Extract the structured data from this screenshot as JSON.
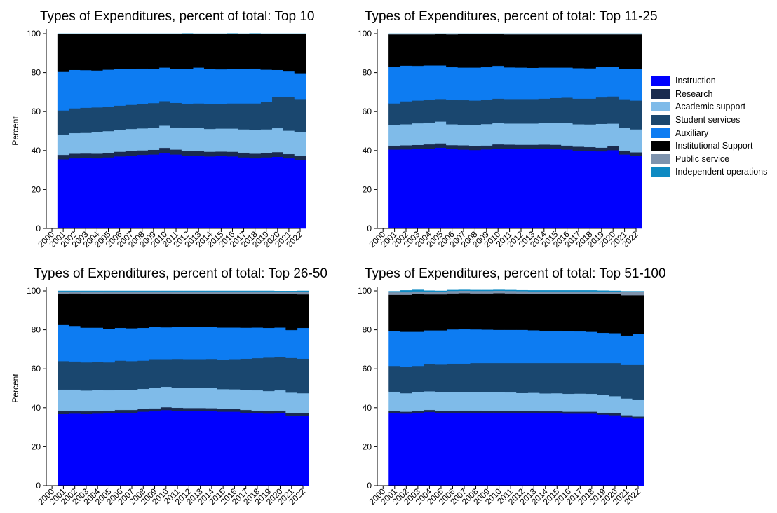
{
  "colors": {
    "Instruction": "#0000ff",
    "Research": "#1a2b4f",
    "Academic support": "#7fbbe9",
    "Student services": "#1a476f",
    "Auxiliary": "#0d7cf2",
    "Institutional Support": "#000000",
    "Public service": "#7e93ad",
    "Independent operations": "#0e8ac2"
  },
  "legend": [
    "Instruction",
    "Research",
    "Academic support",
    "Student services",
    "Auxiliary",
    "Institutional Support",
    "Public service",
    "Independent operations"
  ],
  "chart_data": [
    {
      "type": "area",
      "title": "Types of Expenditures, percent of total: Top 10",
      "ylabel": "Percent",
      "xlabel": "",
      "ylim": [
        0,
        100
      ],
      "yticks": [
        0,
        20,
        40,
        60,
        80,
        100
      ],
      "x_tick_labels": [
        "2000",
        "2001",
        "2002",
        "2003",
        "2004",
        "2005",
        "2006",
        "2007",
        "2008",
        "2009",
        "2010",
        "2011",
        "2012",
        "2013",
        "2014",
        "2015",
        "2016",
        "2017",
        "2018",
        "2019",
        "2020",
        "2021",
        "2022"
      ],
      "x": [
        2001,
        2002,
        2003,
        2004,
        2005,
        2006,
        2007,
        2008,
        2009,
        2010,
        2011,
        2012,
        2013,
        2014,
        2015,
        2016,
        2017,
        2018,
        2019,
        2020,
        2021,
        2022
      ],
      "series": [
        {
          "name": "Instruction",
          "values": [
            35.5,
            36.0,
            36.2,
            36.0,
            36.5,
            37.0,
            37.5,
            37.8,
            38.0,
            38.8,
            38.0,
            37.5,
            37.5,
            37.0,
            37.2,
            37.0,
            36.5,
            36.0,
            36.5,
            36.8,
            36.0,
            35.0
          ]
        },
        {
          "name": "Research",
          "values": [
            2.3,
            2.4,
            2.3,
            2.4,
            2.3,
            2.4,
            2.4,
            2.3,
            2.4,
            2.6,
            2.5,
            2.4,
            2.4,
            2.4,
            2.3,
            2.4,
            2.4,
            2.4,
            2.3,
            2.4,
            2.2,
            2.4
          ]
        },
        {
          "name": "Academic support",
          "values": [
            10.5,
            10.6,
            10.6,
            11.2,
            11.2,
            11.1,
            11.2,
            11.3,
            11.4,
            11.4,
            11.4,
            11.7,
            11.7,
            11.7,
            11.8,
            11.9,
            12.0,
            12.1,
            12.1,
            12.3,
            12.0,
            12.1
          ]
        },
        {
          "name": "Student services",
          "values": [
            12.3,
            12.7,
            12.9,
            12.6,
            12.6,
            12.6,
            12.4,
            12.6,
            12.6,
            12.6,
            12.6,
            12.5,
            12.6,
            12.9,
            12.7,
            12.9,
            13.3,
            13.7,
            14.1,
            16.0,
            17.4,
            17.0
          ]
        },
        {
          "name": "Auxiliary",
          "values": [
            19.8,
            19.7,
            19.3,
            18.9,
            18.9,
            18.9,
            18.5,
            18.1,
            17.5,
            17.2,
            17.4,
            17.7,
            18.4,
            17.8,
            17.7,
            17.6,
            17.8,
            17.9,
            16.5,
            13.9,
            13.0,
            13.2
          ]
        },
        {
          "name": "Institutional Support",
          "values": [
            19.4,
            18.4,
            18.5,
            18.7,
            18.3,
            17.8,
            17.8,
            17.7,
            17.9,
            17.2,
            17.9,
            18.1,
            17.2,
            18.0,
            18.1,
            18.1,
            17.8,
            17.8,
            18.3,
            18.4,
            19.2,
            20.1
          ]
        },
        {
          "name": "Public service",
          "values": [
            0.1,
            0.1,
            0.1,
            0.1,
            0.1,
            0.1,
            0.1,
            0.1,
            0.1,
            0.1,
            0.1,
            0.1,
            0.1,
            0.1,
            0.1,
            0.1,
            0.1,
            0.1,
            0.1,
            0.1,
            0.1,
            0.1
          ]
        },
        {
          "name": "Independent operations",
          "values": [
            0.1,
            0.1,
            0.1,
            0.1,
            0.1,
            0.1,
            0.1,
            0.1,
            0.1,
            0.1,
            0.1,
            0.1,
            0.1,
            0.1,
            0.1,
            0.1,
            0.1,
            0.1,
            0.1,
            0.1,
            0.1,
            0.1
          ]
        }
      ]
    },
    {
      "type": "area",
      "title": "Types of Expenditures, percent of total: Top 11-25",
      "ylabel": "",
      "xlabel": "",
      "ylim": [
        0,
        100
      ],
      "yticks": [
        0,
        20,
        40,
        60,
        80,
        100
      ],
      "x_tick_labels": [
        "2000",
        "2001",
        "2002",
        "2003",
        "2004",
        "2005",
        "2006",
        "2007",
        "2008",
        "2009",
        "2010",
        "2011",
        "2012",
        "2013",
        "2014",
        "2015",
        "2016",
        "2017",
        "2018",
        "2019",
        "2020",
        "2021",
        "2022"
      ],
      "x": [
        2001,
        2002,
        2003,
        2004,
        2005,
        2006,
        2007,
        2008,
        2009,
        2010,
        2011,
        2012,
        2013,
        2014,
        2015,
        2016,
        2017,
        2018,
        2019,
        2020,
        2021,
        2022
      ],
      "series": [
        {
          "name": "Instruction",
          "values": [
            40.5,
            40.6,
            40.8,
            41.0,
            41.5,
            40.8,
            40.5,
            40.3,
            40.6,
            41.0,
            41.0,
            41.0,
            41.0,
            41.0,
            41.0,
            40.5,
            40.0,
            39.8,
            39.6,
            40.2,
            38.0,
            37.2
          ]
        },
        {
          "name": "Research",
          "values": [
            2.0,
            2.1,
            2.1,
            2.2,
            2.2,
            2.0,
            2.2,
            2.0,
            2.0,
            2.2,
            2.1,
            2.0,
            2.0,
            2.1,
            2.0,
            2.1,
            2.0,
            2.0,
            1.9,
            2.0,
            2.0,
            1.9
          ]
        },
        {
          "name": "Academic support",
          "values": [
            10.6,
            10.8,
            11.1,
            11.2,
            11.2,
            10.7,
            10.6,
            10.9,
            11.0,
            10.9,
            10.8,
            10.9,
            10.9,
            11.1,
            11.2,
            11.5,
            11.5,
            11.6,
            12.2,
            11.6,
            11.8,
            11.8
          ]
        },
        {
          "name": "Student services",
          "values": [
            11.1,
            11.8,
            11.7,
            11.8,
            11.6,
            12.5,
            12.6,
            12.5,
            12.5,
            12.6,
            12.6,
            12.6,
            12.6,
            12.5,
            12.8,
            13.1,
            13.2,
            13.3,
            13.6,
            14.0,
            14.6,
            14.8
          ]
        },
        {
          "name": "Auxiliary",
          "values": [
            18.9,
            18.3,
            17.8,
            17.5,
            17.2,
            16.8,
            16.7,
            16.9,
            16.7,
            16.8,
            16.2,
            16.1,
            16.0,
            15.9,
            15.6,
            15.4,
            15.6,
            15.5,
            15.6,
            15.2,
            15.4,
            16.2
          ]
        },
        {
          "name": "Institutional Support",
          "values": [
            16.5,
            16.0,
            16.1,
            15.9,
            16.0,
            16.8,
            17.1,
            17.1,
            16.9,
            16.2,
            16.9,
            17.0,
            17.1,
            17.0,
            17.0,
            17.0,
            17.3,
            17.4,
            16.7,
            16.6,
            17.8,
            17.7
          ]
        },
        {
          "name": "Public service",
          "values": [
            0.3,
            0.3,
            0.3,
            0.3,
            0.2,
            0.3,
            0.2,
            0.2,
            0.2,
            0.2,
            0.3,
            0.3,
            0.3,
            0.3,
            0.3,
            0.3,
            0.3,
            0.3,
            0.3,
            0.3,
            0.3,
            0.3
          ]
        },
        {
          "name": "Independent operations",
          "values": [
            0.1,
            0.1,
            0.1,
            0.1,
            0.1,
            0.1,
            0.1,
            0.1,
            0.1,
            0.1,
            0.1,
            0.1,
            0.1,
            0.1,
            0.1,
            0.1,
            0.1,
            0.1,
            0.1,
            0.1,
            0.1,
            0.1
          ]
        }
      ]
    },
    {
      "type": "area",
      "title": "Types of Expenditures, percent of total: Top 26-50",
      "ylabel": "Percent",
      "xlabel": "",
      "ylim": [
        0,
        100
      ],
      "yticks": [
        0,
        20,
        40,
        60,
        80,
        100
      ],
      "x_tick_labels": [
        "2000",
        "2001",
        "2002",
        "2003",
        "2004",
        "2005",
        "2006",
        "2007",
        "2008",
        "2009",
        "2010",
        "2011",
        "2012",
        "2013",
        "2014",
        "2015",
        "2016",
        "2017",
        "2018",
        "2019",
        "2020",
        "2021",
        "2022"
      ],
      "x": [
        2001,
        2002,
        2003,
        2004,
        2005,
        2006,
        2007,
        2008,
        2009,
        2010,
        2011,
        2012,
        2013,
        2014,
        2015,
        2016,
        2017,
        2018,
        2019,
        2020,
        2021,
        2022
      ],
      "series": [
        {
          "name": "Instruction",
          "values": [
            36.8,
            37.0,
            36.8,
            37.0,
            37.2,
            37.5,
            37.5,
            38.0,
            38.2,
            38.8,
            38.5,
            38.5,
            38.4,
            38.3,
            38.0,
            38.0,
            37.5,
            37.2,
            37.0,
            37.2,
            36.0,
            36.0
          ]
        },
        {
          "name": "Research",
          "values": [
            1.5,
            1.5,
            1.4,
            1.5,
            1.4,
            1.4,
            1.4,
            1.5,
            1.5,
            1.5,
            1.5,
            1.4,
            1.5,
            1.5,
            1.4,
            1.4,
            1.4,
            1.4,
            1.4,
            1.4,
            1.4,
            1.3
          ]
        },
        {
          "name": "Academic support",
          "values": [
            11.0,
            10.8,
            10.7,
            10.7,
            10.4,
            10.3,
            10.3,
            10.2,
            10.5,
            10.5,
            10.3,
            10.4,
            10.3,
            10.3,
            10.2,
            10.1,
            10.3,
            10.4,
            10.2,
            10.4,
            10.4,
            10.2
          ]
        },
        {
          "name": "Student services",
          "values": [
            14.7,
            14.5,
            14.4,
            14.2,
            14.3,
            15.0,
            14.8,
            14.5,
            14.8,
            14.2,
            14.8,
            14.7,
            14.8,
            15.0,
            15.2,
            15.5,
            16.0,
            16.5,
            17.2,
            17.2,
            17.8,
            17.7
          ]
        },
        {
          "name": "Auxiliary",
          "values": [
            18.5,
            18.2,
            17.8,
            17.7,
            17.2,
            16.8,
            16.8,
            16.8,
            16.5,
            16.3,
            16.5,
            16.4,
            16.5,
            16.4,
            16.4,
            16.2,
            15.9,
            15.7,
            15.2,
            15.0,
            14.3,
            15.8
          ]
        },
        {
          "name": "Institutional Support",
          "values": [
            16.1,
            16.7,
            17.3,
            17.3,
            18.1,
            17.6,
            17.8,
            17.6,
            17.1,
            17.3,
            16.9,
            17.1,
            17.0,
            17.0,
            17.3,
            17.3,
            17.4,
            17.3,
            17.5,
            17.2,
            18.4,
            17.2
          ]
        },
        {
          "name": "Public service",
          "values": [
            1.2,
            1.1,
            1.4,
            1.4,
            1.2,
            1.2,
            1.2,
            1.2,
            1.2,
            1.2,
            1.3,
            1.3,
            1.3,
            1.3,
            1.3,
            1.3,
            1.3,
            1.3,
            1.3,
            1.3,
            1.2,
            1.3
          ]
        },
        {
          "name": "Independent operations",
          "values": [
            0.2,
            0.2,
            0.2,
            0.2,
            0.2,
            0.2,
            0.2,
            0.2,
            0.2,
            0.2,
            0.2,
            0.2,
            0.2,
            0.2,
            0.2,
            0.2,
            0.2,
            0.2,
            0.2,
            0.2,
            0.4,
            0.5
          ]
        }
      ]
    },
    {
      "type": "area",
      "title": "Types of Expenditures, percent of total: Top 51-100",
      "ylabel": "",
      "xlabel": "",
      "ylim": [
        0,
        100
      ],
      "yticks": [
        0,
        20,
        40,
        60,
        80,
        100
      ],
      "x_tick_labels": [
        "2000",
        "2001",
        "2002",
        "2003",
        "2004",
        "2005",
        "2006",
        "2007",
        "2008",
        "2009",
        "2010",
        "2011",
        "2012",
        "2013",
        "2014",
        "2015",
        "2016",
        "2017",
        "2018",
        "2019",
        "2020",
        "2021",
        "2022"
      ],
      "x": [
        2001,
        2002,
        2003,
        2004,
        2005,
        2006,
        2007,
        2008,
        2009,
        2010,
        2011,
        2012,
        2013,
        2014,
        2015,
        2016,
        2017,
        2018,
        2019,
        2020,
        2021,
        2022
      ],
      "series": [
        {
          "name": "Instruction",
          "values": [
            37.5,
            37.0,
            37.5,
            37.8,
            37.5,
            37.5,
            37.5,
            37.5,
            37.5,
            37.5,
            37.5,
            37.3,
            37.5,
            37.2,
            37.2,
            37.0,
            37.0,
            37.0,
            36.5,
            36.2,
            35.2,
            34.5
          ]
        },
        {
          "name": "Research",
          "values": [
            1.0,
            1.0,
            1.0,
            1.1,
            1.0,
            1.0,
            1.1,
            1.1,
            1.0,
            1.0,
            1.0,
            1.0,
            1.0,
            1.0,
            1.0,
            1.0,
            1.0,
            1.0,
            1.0,
            1.0,
            1.0,
            1.0
          ]
        },
        {
          "name": "Academic support",
          "values": [
            9.8,
            9.5,
            9.5,
            9.6,
            9.7,
            9.7,
            9.6,
            9.6,
            9.5,
            9.5,
            9.4,
            9.3,
            9.2,
            9.2,
            9.3,
            9.2,
            9.3,
            9.2,
            9.2,
            8.8,
            8.6,
            8.5
          ]
        },
        {
          "name": "Student services",
          "values": [
            13.2,
            13.5,
            13.5,
            14.0,
            14.0,
            14.5,
            14.5,
            14.8,
            15.0,
            15.0,
            15.1,
            15.4,
            15.3,
            15.6,
            15.5,
            15.8,
            15.7,
            15.8,
            16.3,
            17.0,
            17.2,
            18.0
          ]
        },
        {
          "name": "Auxiliary",
          "values": [
            18.0,
            18.0,
            17.5,
            17.2,
            17.5,
            17.5,
            17.6,
            17.2,
            17.1,
            17.0,
            17.0,
            17.0,
            16.8,
            16.6,
            16.6,
            16.3,
            16.2,
            16.0,
            15.5,
            15.3,
            15.0,
            15.8
          ]
        },
        {
          "name": "Institutional Support",
          "values": [
            18.5,
            19.0,
            19.5,
            18.5,
            18.5,
            18.5,
            18.5,
            18.5,
            18.6,
            18.8,
            18.7,
            18.6,
            18.7,
            18.9,
            18.9,
            19.2,
            19.3,
            19.5,
            19.9,
            20.0,
            20.8,
            20.0
          ]
        },
        {
          "name": "Public service",
          "values": [
            1.3,
            1.3,
            1.3,
            1.3,
            1.3,
            1.3,
            1.3,
            1.3,
            1.3,
            1.3,
            1.3,
            1.3,
            1.3,
            1.3,
            1.3,
            1.3,
            1.3,
            1.3,
            1.3,
            1.3,
            1.6,
            1.6
          ]
        },
        {
          "name": "Independent operations",
          "values": [
            0.5,
            0.9,
            0.7,
            0.6,
            0.5,
            0.4,
            0.4,
            0.4,
            0.4,
            0.4,
            0.4,
            0.4,
            0.4,
            0.4,
            0.4,
            0.4,
            0.4,
            0.4,
            0.4,
            0.4,
            0.4,
            0.4
          ]
        }
      ]
    }
  ]
}
